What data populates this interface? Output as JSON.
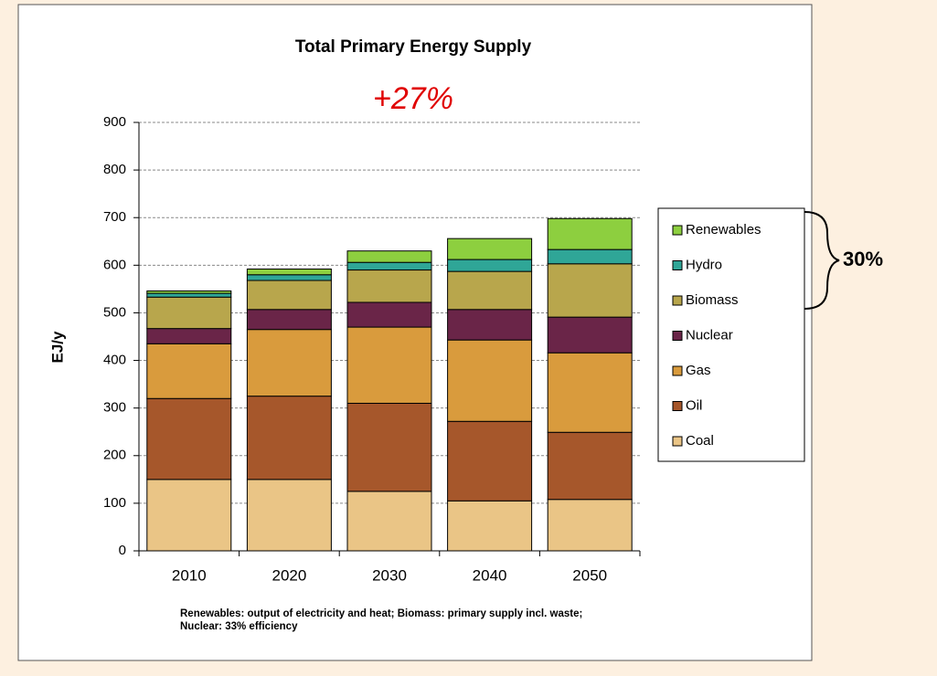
{
  "chart_data": {
    "type": "stacked_bar",
    "title": "Total Primary Energy Supply",
    "annotations": {
      "growth": "+27%",
      "renewable_share": "30%"
    },
    "y_label": "EJ/y",
    "footnote": [
      "Renewables: output of electricity and heat; Biomass: primary supply incl. waste;",
      "Nuclear: 33% efficiency"
    ],
    "categories": [
      "2010",
      "2020",
      "2030",
      "2040",
      "2050"
    ],
    "series": [
      {
        "name": "Coal",
        "color": "#eac586",
        "values": [
          150,
          150,
          125,
          105,
          108
        ]
      },
      {
        "name": "Oil",
        "color": "#a6572b",
        "values": [
          170,
          175,
          185,
          167,
          141
        ]
      },
      {
        "name": "Gas",
        "color": "#d99b3d",
        "values": [
          115,
          140,
          160,
          171,
          167
        ]
      },
      {
        "name": "Nuclear",
        "color": "#6a2548",
        "values": [
          32,
          42,
          52,
          64,
          75
        ]
      },
      {
        "name": "Biomass",
        "color": "#b8a64c",
        "values": [
          66,
          61,
          68,
          80,
          112
        ]
      },
      {
        "name": "Hydro",
        "color": "#2fa697",
        "values": [
          8,
          12,
          16,
          25,
          30
        ]
      },
      {
        "name": "Renewables",
        "color": "#8dcf3f",
        "values": [
          5,
          12,
          24,
          44,
          65
        ]
      }
    ],
    "ylim": [
      0,
      900
    ],
    "yticks": [
      0,
      100,
      200,
      300,
      400,
      500,
      600,
      700,
      800,
      900
    ],
    "grid": true
  }
}
